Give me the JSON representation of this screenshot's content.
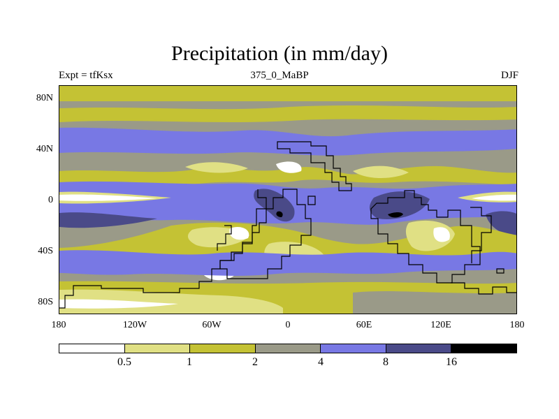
{
  "map": {
    "title": "Precipitation (in mm/day)",
    "left_label": "Expt = tfKsx",
    "center_label": "375_0_MaBP",
    "right_label": "DJF",
    "lat_ticks": [
      "80N",
      "40N",
      "0",
      "40S",
      "80S"
    ],
    "lon_ticks": [
      "180",
      "120W",
      "60W",
      "0",
      "60E",
      "120E",
      "180"
    ],
    "legend": {
      "levels": [
        "0.5",
        "1",
        "2",
        "4",
        "8",
        "16"
      ],
      "colors": [
        "#ffffff",
        "#e0e084",
        "#c4c234",
        "#9a9a88",
        "#7878e4",
        "#4a4a88",
        "#000000"
      ]
    }
  }
}
